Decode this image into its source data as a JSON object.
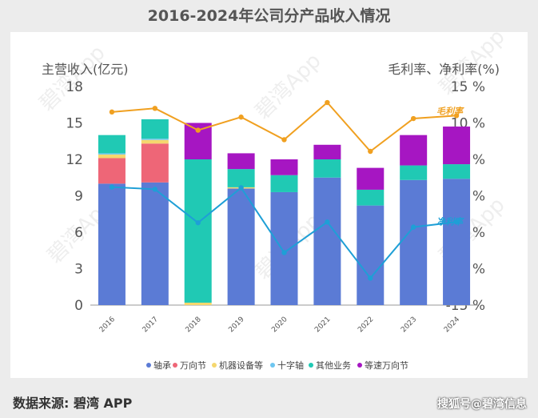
{
  "title": "2016-2024年公司分产品收入情况",
  "footer": {
    "source": "数据来源: 碧湾 APP",
    "credit": "搜狐号@碧湾信息"
  },
  "watermark_text": "碧湾App",
  "chart_data": {
    "type": "bar",
    "title": "2016-2024年公司分产品收入情况",
    "ylabel_left": "主营收入(亿元)",
    "ylabel_right": "毛利率、净利率(%)",
    "ylim": [
      0,
      18
    ],
    "ylim_right": [
      -15,
      15
    ],
    "yticks_left": [
      "0",
      "3",
      "6",
      "9",
      "12",
      "15",
      "18"
    ],
    "yticks_right": [
      "-15 %",
      "-10 %",
      "-5 %",
      "0 %",
      "5 %",
      "10 %",
      "15 %"
    ],
    "categories": [
      "2016",
      "2017",
      "2018",
      "2019",
      "2020",
      "2021",
      "2022",
      "2023",
      "2024"
    ],
    "stacked": true,
    "series": [
      {
        "name": "轴承",
        "color": "#5b7bd5",
        "values": [
          10.0,
          10.1,
          0,
          9.6,
          9.3,
          10.5,
          8.2,
          10.3,
          10.4
        ]
      },
      {
        "name": "万向节",
        "color": "#ee6677",
        "values": [
          2.1,
          3.2,
          0,
          0,
          0,
          0,
          0,
          0,
          0
        ]
      },
      {
        "name": "机器设备等",
        "color": "#f5d76e",
        "values": [
          0.3,
          0.3,
          0.2,
          0.1,
          0,
          0,
          0,
          0,
          0
        ]
      },
      {
        "name": "十字轴",
        "color": "#6ec6f0",
        "values": [
          0.1,
          0.1,
          0,
          0,
          0,
          0,
          0,
          0,
          0
        ]
      },
      {
        "name": "其他业务",
        "color": "#20c9b4",
        "values": [
          1.5,
          1.6,
          11.8,
          1.5,
          1.4,
          1.5,
          1.3,
          1.2,
          1.2
        ]
      },
      {
        "name": "等速万向节",
        "color": "#a616c2",
        "values": [
          0,
          0,
          3.0,
          1.3,
          1.3,
          1.2,
          1.8,
          2.5,
          3.1
        ]
      }
    ],
    "lines": [
      {
        "name": "毛利率",
        "color": "#f0a020",
        "axis": "right",
        "label": "毛利率",
        "values": [
          11.5,
          12.0,
          9.0,
          10.8,
          7.7,
          12.8,
          6.1,
          10.6,
          11.0
        ]
      },
      {
        "name": "净利率",
        "color": "#1e9fd6",
        "axis": "right",
        "label": "净利率",
        "values": [
          1.2,
          0.9,
          -3.7,
          1.1,
          -7.8,
          -3.6,
          -11.3,
          -4.3,
          -3.6
        ]
      }
    ],
    "legend": [
      "轴承",
      "万向节",
      "机器设备等",
      "十字轴",
      "其他业务",
      "等速万向节"
    ],
    "legend_position": "bottom",
    "grid": false
  }
}
